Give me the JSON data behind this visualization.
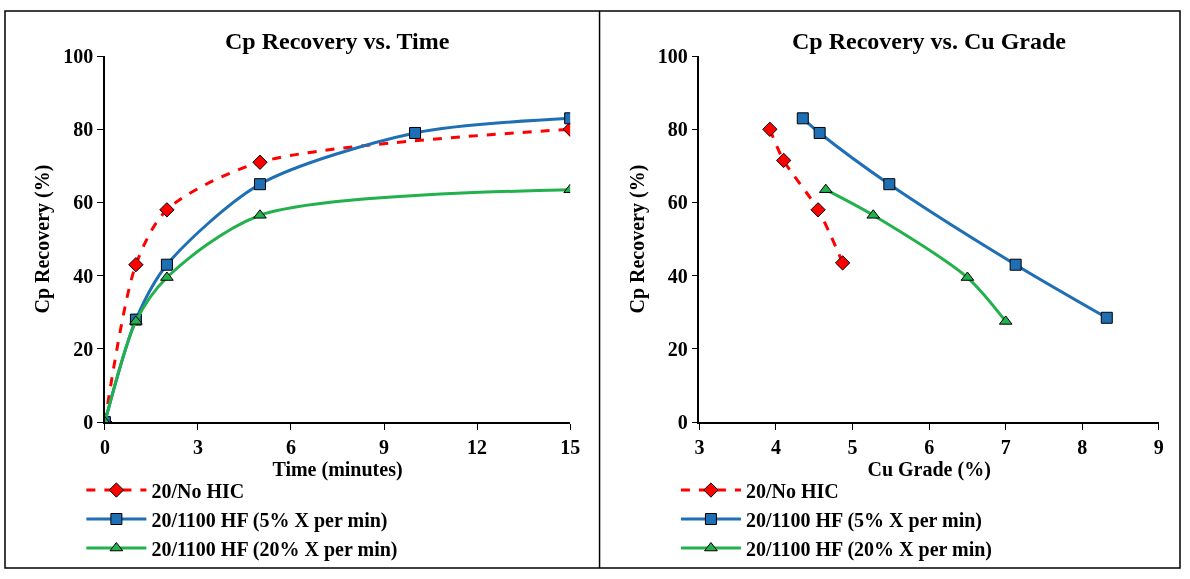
{
  "chart_data": [
    {
      "type": "line",
      "title": "Cp Recovery vs. Time",
      "xlabel": "Time (minutes)",
      "ylabel": "Cp Recovery (%)",
      "xlim": [
        0,
        15
      ],
      "xticks": [
        0,
        3,
        6,
        9,
        12,
        15
      ],
      "ylim": [
        0,
        100
      ],
      "yticks": [
        0,
        20,
        40,
        60,
        80,
        100
      ],
      "legend": "bottom",
      "series": [
        {
          "name": "20/No HIC",
          "color": "#ff0000",
          "marker": "diamond",
          "line_style": "dashed",
          "x": [
            0,
            1,
            2,
            5,
            15
          ],
          "values": [
            0,
            43,
            58,
            71,
            80
          ]
        },
        {
          "name": "20/1100 HF (5% X per min)",
          "color": "#1f6fb5",
          "marker": "square",
          "line_style": "solid",
          "x": [
            0,
            1,
            2,
            5,
            10,
            15
          ],
          "values": [
            0,
            28,
            43,
            65,
            79,
            83
          ]
        },
        {
          "name": "20/1100 HF (20% X per min)",
          "color": "#22b14c",
          "marker": "triangle",
          "line_style": "solid",
          "x": [
            0,
            1,
            2,
            5,
            15
          ],
          "values": [
            0,
            27.5,
            39.5,
            56.5,
            63.5
          ]
        }
      ]
    },
    {
      "type": "line",
      "title": "Cp Recovery vs. Cu Grade",
      "xlabel": "Cu Grade (%)",
      "ylabel": "Cp Recovery (%)",
      "xlim": [
        3,
        9
      ],
      "xticks": [
        3,
        4,
        5,
        6,
        7,
        8,
        9
      ],
      "ylim": [
        0,
        100
      ],
      "yticks": [
        0,
        20,
        40,
        60,
        80,
        100
      ],
      "legend": "bottom",
      "series": [
        {
          "name": "20/No HIC",
          "color": "#ff0000",
          "marker": "diamond",
          "line_style": "dashed",
          "x": [
            3.92,
            4.1,
            4.55,
            4.87
          ],
          "values": [
            80,
            71.5,
            58,
            43.5
          ]
        },
        {
          "name": "20/1100 HF (5% X per min)",
          "color": "#1f6fb5",
          "marker": "square",
          "line_style": "solid",
          "x": [
            4.35,
            4.57,
            5.48,
            7.13,
            8.32
          ],
          "values": [
            83,
            79,
            65,
            43,
            28.5
          ]
        },
        {
          "name": "20/1100 HF (20% X per min)",
          "color": "#22b14c",
          "marker": "triangle",
          "line_style": "solid",
          "x": [
            4.65,
            5.27,
            6.5,
            7.0
          ],
          "values": [
            63.5,
            56.5,
            39.5,
            27.5
          ]
        }
      ]
    }
  ]
}
